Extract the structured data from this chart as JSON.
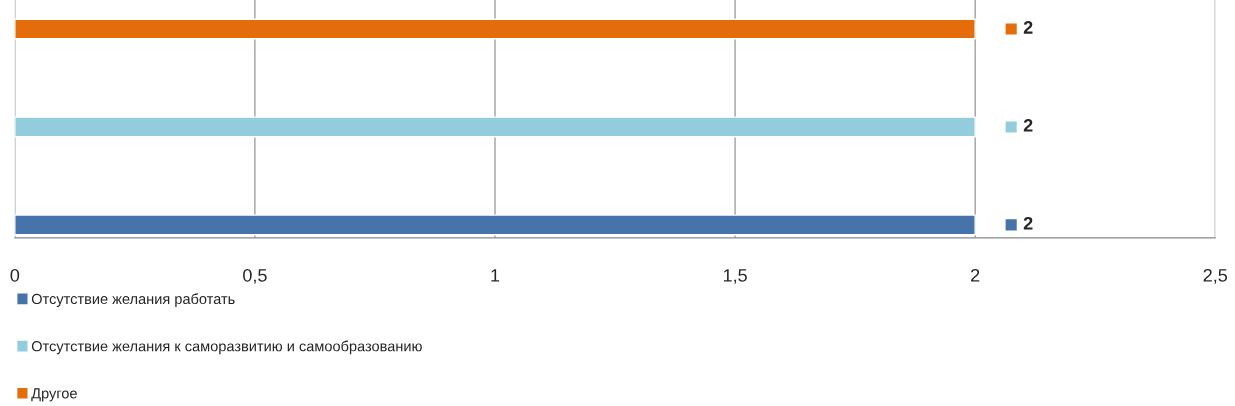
{
  "chart_data": {
    "type": "bar",
    "orientation": "horizontal",
    "categories": [
      null
    ],
    "series": [
      {
        "name": "Отсутствие желания работать",
        "color": "#4674aa",
        "values": [
          2
        ]
      },
      {
        "name": "Отсутствие желания к саморазвитию и самообразованию",
        "color": "#93cddd",
        "values": [
          2
        ]
      },
      {
        "name": "Другое",
        "color": "#e46c0a",
        "values": [
          2
        ]
      }
    ],
    "xlim": [
      0,
      2.5
    ],
    "xticks": [
      0,
      {
        "value": 0.5,
        "label": "0,5"
      },
      1,
      {
        "value": 1.5,
        "label": "1,5"
      },
      2,
      {
        "value": 2.5,
        "label": "2,5"
      }
    ],
    "grid": "x",
    "legend": "bottom",
    "data_labels": true
  }
}
